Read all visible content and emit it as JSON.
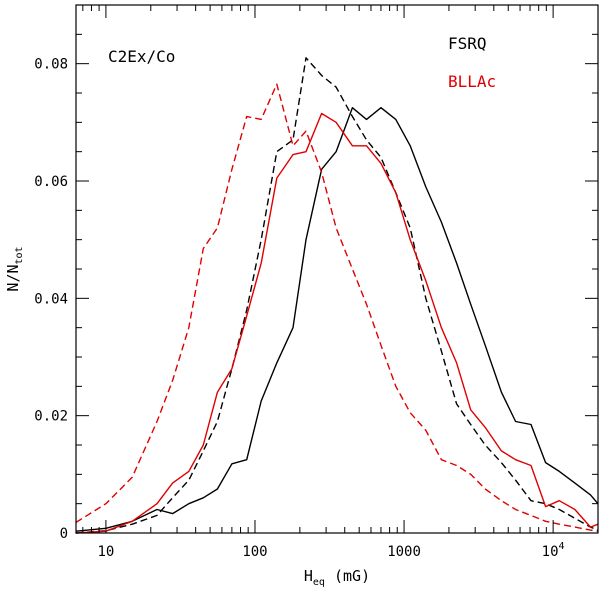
{
  "chart_data": {
    "type": "line",
    "annotation": "C2Ex/Co",
    "xlabel": {
      "main": "H",
      "sub": "eq",
      "unit": " (mG)"
    },
    "ylabel": {
      "main": "N/N",
      "sub": "tot"
    },
    "x_scale": "log",
    "xlim": [
      6.3,
      20000
    ],
    "ylim": [
      0,
      0.09
    ],
    "x_ticks": [
      {
        "value": 10,
        "label": "10"
      },
      {
        "value": 100,
        "label": "100"
      },
      {
        "value": 1000,
        "label": "1000"
      },
      {
        "value": 10000,
        "label": "10",
        "sup": "4"
      }
    ],
    "y_ticks": [
      {
        "value": 0,
        "label": "0"
      },
      {
        "value": 0.02,
        "label": "0.02"
      },
      {
        "value": 0.04,
        "label": "0.04"
      },
      {
        "value": 0.06,
        "label": "0.06"
      },
      {
        "value": 0.08,
        "label": "0.08"
      }
    ],
    "legend": [
      {
        "label": "FSRQ",
        "color": "#000000"
      },
      {
        "label": "BLLAc",
        "color": "#e00000"
      }
    ],
    "series": [
      {
        "name": "FSRQ solid",
        "color": "#000000",
        "dash": false,
        "x": [
          6.3,
          10,
          15,
          22,
          28,
          36,
          45,
          56,
          70,
          88,
          110,
          140,
          180,
          220,
          280,
          350,
          450,
          560,
          700,
          880,
          1100,
          1400,
          1780,
          2250,
          2800,
          3500,
          4500,
          5600,
          7100,
          8900,
          11000,
          14000,
          17800,
          20000
        ],
        "y": [
          0.0003,
          0.0008,
          0.002,
          0.004,
          0.0033,
          0.005,
          0.006,
          0.0075,
          0.0118,
          0.0125,
          0.0225,
          0.029,
          0.035,
          0.05,
          0.062,
          0.065,
          0.0725,
          0.0705,
          0.0725,
          0.0705,
          0.066,
          0.059,
          0.053,
          0.046,
          0.039,
          0.032,
          0.024,
          0.019,
          0.0185,
          0.012,
          0.0105,
          0.0085,
          0.0065,
          0.005
        ]
      },
      {
        "name": "FSRQ dashed",
        "color": "#000000",
        "dash": true,
        "x": [
          6.3,
          10,
          15,
          22,
          28,
          36,
          45,
          56,
          70,
          88,
          110,
          140,
          180,
          220,
          280,
          350,
          450,
          560,
          700,
          880,
          1100,
          1400,
          1780,
          2250,
          2800,
          3500,
          4500,
          5600,
          7100,
          8900,
          11000,
          14000,
          17800,
          20000
        ],
        "y": [
          0,
          0.0004,
          0.0015,
          0.003,
          0.006,
          0.009,
          0.014,
          0.019,
          0.028,
          0.038,
          0.05,
          0.065,
          0.067,
          0.081,
          0.078,
          0.076,
          0.071,
          0.067,
          0.064,
          0.058,
          0.052,
          0.04,
          0.031,
          0.022,
          0.0185,
          0.015,
          0.012,
          0.009,
          0.0055,
          0.005,
          0.004,
          0.0025,
          0.001,
          0.0005
        ]
      },
      {
        "name": "BLLAc solid",
        "color": "#e00000",
        "dash": false,
        "x": [
          6.3,
          10,
          15,
          22,
          28,
          36,
          45,
          56,
          70,
          88,
          110,
          140,
          180,
          220,
          280,
          350,
          450,
          560,
          700,
          880,
          1100,
          1400,
          1780,
          2250,
          2800,
          3500,
          4500,
          5600,
          7100,
          8900,
          11000,
          14000,
          17800,
          20000
        ],
        "y": [
          0,
          0.0003,
          0.002,
          0.005,
          0.0085,
          0.0105,
          0.015,
          0.024,
          0.028,
          0.037,
          0.046,
          0.0605,
          0.0645,
          0.065,
          0.0715,
          0.07,
          0.066,
          0.066,
          0.063,
          0.058,
          0.05,
          0.043,
          0.035,
          0.029,
          0.021,
          0.018,
          0.014,
          0.0125,
          0.0115,
          0.0045,
          0.0055,
          0.004,
          0.001,
          0.0015
        ]
      },
      {
        "name": "BLLAc dashed",
        "color": "#e00000",
        "dash": true,
        "x": [
          6.3,
          10,
          15,
          22,
          28,
          36,
          45,
          56,
          70,
          88,
          110,
          140,
          180,
          220,
          280,
          350,
          450,
          560,
          700,
          880,
          1100,
          1400,
          1780,
          2250,
          2800,
          3500,
          4500,
          5600,
          7100,
          8900,
          11000,
          14000,
          17800,
          20000
        ],
        "y": [
          0.0018,
          0.005,
          0.0095,
          0.019,
          0.026,
          0.035,
          0.0485,
          0.052,
          0.062,
          0.071,
          0.0705,
          0.0765,
          0.066,
          0.0685,
          0.0615,
          0.052,
          0.045,
          0.039,
          0.032,
          0.025,
          0.0205,
          0.0175,
          0.0125,
          0.0115,
          0.01,
          0.0075,
          0.0055,
          0.004,
          0.003,
          0.002,
          0.0015,
          0.001,
          0.0005,
          0.0003
        ]
      }
    ]
  }
}
